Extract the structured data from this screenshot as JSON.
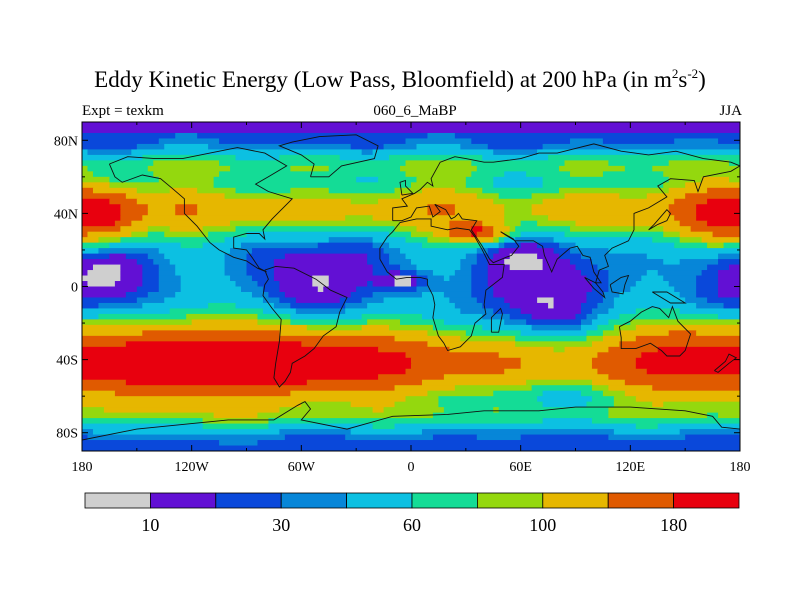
{
  "title": {
    "main": "Eddy Kinetic Energy (Low Pass, Bloomfield) at 200 hPa (in m",
    "exp1": "2",
    "mid": "s",
    "exp2": "-2",
    "close": ")"
  },
  "subtitle": {
    "left": "Expt = texkm",
    "center": "060_6_MaBP",
    "right": "JJA"
  },
  "chart_data": {
    "type": "heatmap",
    "variable": "Eddy Kinetic Energy (Low Pass, Bloomfield) at 200 hPa",
    "units": "m2s-2",
    "experiment": "texkm",
    "run": "060_6_MaBP",
    "season": "JJA",
    "projection": "cylindrical equidistant",
    "xlim": [
      -180,
      180
    ],
    "ylim": [
      -90,
      90
    ],
    "x_ticks": [
      {
        "value": -180,
        "label": "180"
      },
      {
        "value": -120,
        "label": "120W"
      },
      {
        "value": -60,
        "label": "60W"
      },
      {
        "value": 0,
        "label": "0"
      },
      {
        "value": 60,
        "label": "60E"
      },
      {
        "value": 120,
        "label": "120E"
      },
      {
        "value": 180,
        "label": "180"
      }
    ],
    "y_ticks": [
      {
        "value": 80,
        "label": "80N"
      },
      {
        "value": 40,
        "label": "40N"
      },
      {
        "value": 0,
        "label": "0"
      },
      {
        "value": -40,
        "label": "40S"
      },
      {
        "value": -80,
        "label": "80S"
      }
    ],
    "levels": [
      10,
      20,
      30,
      40,
      60,
      80,
      100,
      140,
      180
    ],
    "colorbar": {
      "colors": [
        "#cfcfcf",
        "#6210d4",
        "#0a48da",
        "#0786d8",
        "#0cc0e2",
        "#14dc96",
        "#94d80e",
        "#e6b700",
        "#e05a00",
        "#e8000e"
      ],
      "labels": [
        {
          "value": 10,
          "label": "10"
        },
        {
          "value": 30,
          "label": "30"
        },
        {
          "value": 60,
          "label": "60"
        },
        {
          "value": 100,
          "label": "100"
        },
        {
          "value": 180,
          "label": "180"
        }
      ]
    },
    "features": [
      {
        "lon": -150,
        "lat": -42,
        "value": 200,
        "sx": 50,
        "sy": 14,
        "desc": "southern hemisphere jet maximum"
      },
      {
        "lon": -60,
        "lat": -42,
        "value": 210,
        "sx": 55,
        "sy": 14
      },
      {
        "lon": 150,
        "lat": -40,
        "value": 190,
        "sx": 25,
        "sy": 12
      },
      {
        "lon": -168,
        "lat": 40,
        "value": 200,
        "sx": 15,
        "sy": 10
      },
      {
        "lon": 168,
        "lat": 40,
        "value": 200,
        "sx": 15,
        "sy": 10
      },
      {
        "lon": 35,
        "lat": 30,
        "value": 190,
        "sx": 12,
        "sy": 4
      },
      {
        "lon": -5,
        "lat": 3,
        "value": 5,
        "sx": 10,
        "sy": 4,
        "desc": "equatorial minimum"
      },
      {
        "lon": 75,
        "lat": 2,
        "value": 15,
        "sx": 20,
        "sy": 5
      }
    ]
  },
  "coast_outlines": [
    [
      [
        -165,
        67
      ],
      [
        -155,
        71
      ],
      [
        -140,
        70
      ],
      [
        -125,
        70
      ],
      [
        -110,
        73
      ],
      [
        -95,
        76
      ],
      [
        -80,
        73
      ],
      [
        -68,
        66
      ],
      [
        -78,
        60
      ],
      [
        -85,
        56
      ],
      [
        -78,
        52
      ],
      [
        -65,
        48
      ],
      [
        -70,
        43
      ],
      [
        -76,
        37
      ],
      [
        -81,
        31
      ],
      [
        -80,
        26
      ],
      [
        -83,
        29
      ],
      [
        -90,
        29
      ],
      [
        -97,
        27
      ],
      [
        -97,
        21
      ],
      [
        -90,
        20
      ],
      [
        -87,
        16
      ],
      [
        -83,
        10
      ],
      [
        -79,
        8
      ],
      [
        -84,
        10
      ],
      [
        -90,
        14
      ],
      [
        -97,
        16
      ],
      [
        -105,
        20
      ],
      [
        -110,
        24
      ],
      [
        -117,
        33
      ],
      [
        -124,
        40
      ],
      [
        -124,
        48
      ],
      [
        -131,
        54
      ],
      [
        -137,
        59
      ],
      [
        -147,
        61
      ],
      [
        -158,
        57
      ],
      [
        -162,
        60
      ],
      [
        -165,
        67
      ]
    ],
    [
      [
        -80,
        9
      ],
      [
        -74,
        11
      ],
      [
        -64,
        10
      ],
      [
        -52,
        4
      ],
      [
        -44,
        -2
      ],
      [
        -35,
        -6
      ],
      [
        -39,
        -14
      ],
      [
        -41,
        -22
      ],
      [
        -48,
        -27
      ],
      [
        -53,
        -34
      ],
      [
        -58,
        -38
      ],
      [
        -65,
        -42
      ],
      [
        -66,
        -47
      ],
      [
        -69,
        -52
      ],
      [
        -72,
        -55
      ],
      [
        -75,
        -50
      ],
      [
        -74,
        -42
      ],
      [
        -72,
        -30
      ],
      [
        -71,
        -18
      ],
      [
        -76,
        -12
      ],
      [
        -81,
        -5
      ],
      [
        -80,
        1
      ],
      [
        -78,
        4
      ],
      [
        -80,
        9
      ]
    ],
    [
      [
        -10,
        36
      ],
      [
        -10,
        43
      ],
      [
        -2,
        44
      ],
      [
        -5,
        48
      ],
      [
        2,
        51
      ],
      [
        5,
        53
      ],
      [
        9,
        57
      ],
      [
        12,
        55
      ],
      [
        11,
        59
      ],
      [
        16,
        68
      ],
      [
        24,
        71
      ],
      [
        30,
        70
      ],
      [
        40,
        68
      ],
      [
        45,
        68
      ],
      [
        60,
        70
      ],
      [
        70,
        73
      ],
      [
        80,
        73
      ],
      [
        100,
        78
      ],
      [
        115,
        74
      ],
      [
        130,
        72
      ],
      [
        145,
        74
      ],
      [
        160,
        70
      ],
      [
        175,
        68
      ],
      [
        180,
        66
      ],
      [
        175,
        63
      ],
      [
        160,
        60
      ],
      [
        157,
        52
      ],
      [
        155,
        58
      ],
      [
        142,
        59
      ],
      [
        135,
        55
      ],
      [
        140,
        49
      ],
      [
        130,
        43
      ],
      [
        122,
        40
      ],
      [
        122,
        31
      ],
      [
        119,
        25
      ],
      [
        110,
        21
      ],
      [
        106,
        17
      ],
      [
        108,
        11
      ],
      [
        103,
        9
      ],
      [
        101,
        2
      ],
      [
        104,
        2
      ],
      [
        100,
        8
      ],
      [
        98,
        16
      ],
      [
        94,
        17
      ],
      [
        91,
        22
      ],
      [
        87,
        21
      ],
      [
        80,
        15
      ],
      [
        77,
        8
      ],
      [
        73,
        17
      ],
      [
        72,
        22
      ],
      [
        67,
        25
      ],
      [
        57,
        25
      ],
      [
        52,
        28
      ],
      [
        49,
        30
      ],
      [
        56,
        26
      ],
      [
        59,
        22
      ],
      [
        55,
        17
      ],
      [
        52,
        16
      ],
      [
        45,
        13
      ],
      [
        43,
        15
      ],
      [
        39,
        22
      ],
      [
        35,
        28
      ],
      [
        33,
        31
      ],
      [
        36,
        36
      ],
      [
        28,
        37
      ],
      [
        26,
        40
      ],
      [
        24,
        38
      ],
      [
        22,
        37
      ],
      [
        19,
        42
      ],
      [
        13,
        45
      ],
      [
        16,
        41
      ],
      [
        12,
        38
      ],
      [
        10,
        44
      ],
      [
        3,
        43
      ],
      [
        0,
        38
      ],
      [
        -5,
        36
      ],
      [
        -10,
        36
      ]
    ],
    [
      [
        -17,
        15
      ],
      [
        -17,
        21
      ],
      [
        -13,
        27
      ],
      [
        -10,
        30
      ],
      [
        -6,
        35
      ],
      [
        3,
        37
      ],
      [
        11,
        37
      ],
      [
        11,
        33
      ],
      [
        20,
        31
      ],
      [
        25,
        32
      ],
      [
        32,
        31
      ],
      [
        35,
        27
      ],
      [
        39,
        20
      ],
      [
        43,
        12
      ],
      [
        51,
        12
      ],
      [
        50,
        5
      ],
      [
        41,
        -2
      ],
      [
        40,
        -10
      ],
      [
        41,
        -15
      ],
      [
        35,
        -20
      ],
      [
        33,
        -27
      ],
      [
        27,
        -33
      ],
      [
        20,
        -35
      ],
      [
        18,
        -31
      ],
      [
        15,
        -27
      ],
      [
        12,
        -17
      ],
      [
        13,
        -10
      ],
      [
        12,
        -5
      ],
      [
        9,
        1
      ],
      [
        9,
        4
      ],
      [
        5,
        5
      ],
      [
        -2,
        5
      ],
      [
        -8,
        4
      ],
      [
        -13,
        8
      ],
      [
        -17,
        15
      ]
    ],
    [
      [
        114,
        -22
      ],
      [
        120,
        -19
      ],
      [
        126,
        -14
      ],
      [
        132,
        -11
      ],
      [
        136,
        -12
      ],
      [
        141,
        -17
      ],
      [
        143,
        -11
      ],
      [
        146,
        -19
      ],
      [
        153,
        -26
      ],
      [
        150,
        -35
      ],
      [
        147,
        -38
      ],
      [
        140,
        -38
      ],
      [
        137,
        -35
      ],
      [
        131,
        -31
      ],
      [
        123,
        -34
      ],
      [
        115,
        -34
      ],
      [
        115,
        -28
      ],
      [
        114,
        -22
      ]
    ],
    [
      [
        -55,
        60
      ],
      [
        -45,
        60
      ],
      [
        -38,
        66
      ],
      [
        -20,
        70
      ],
      [
        -18,
        77
      ],
      [
        -30,
        83
      ],
      [
        -50,
        82
      ],
      [
        -65,
        79
      ],
      [
        -72,
        77
      ],
      [
        -60,
        72
      ],
      [
        -53,
        67
      ],
      [
        -55,
        60
      ]
    ],
    [
      [
        44,
        -25
      ],
      [
        48,
        -25
      ],
      [
        50,
        -15
      ],
      [
        49,
        -12
      ],
      [
        44,
        -17
      ],
      [
        44,
        -25
      ]
    ],
    [
      [
        -5,
        50
      ],
      [
        1,
        51
      ],
      [
        -3,
        55
      ],
      [
        -3,
        58
      ],
      [
        -6,
        57
      ],
      [
        -5,
        50
      ]
    ],
    [
      [
        130,
        31
      ],
      [
        135,
        34
      ],
      [
        140,
        36
      ],
      [
        142,
        40
      ],
      [
        140,
        42
      ],
      [
        133,
        34
      ],
      [
        130,
        31
      ]
    ],
    [
      [
        95,
        5
      ],
      [
        101,
        2
      ],
      [
        105,
        -3
      ],
      [
        106,
        -6
      ],
      [
        100,
        -1
      ],
      [
        95,
        5
      ]
    ],
    [
      [
        109,
        1
      ],
      [
        115,
        5
      ],
      [
        119,
        6
      ],
      [
        117,
        1
      ],
      [
        116,
        -4
      ],
      [
        110,
        -3
      ],
      [
        109,
        1
      ]
    ],
    [
      [
        132,
        -3
      ],
      [
        140,
        -3
      ],
      [
        150,
        -9
      ],
      [
        142,
        -9
      ],
      [
        132,
        -3
      ]
    ],
    [
      [
        166,
        -46
      ],
      [
        172,
        -41
      ],
      [
        174,
        -37
      ],
      [
        178,
        -39
      ],
      [
        174,
        -42
      ],
      [
        168,
        -47
      ],
      [
        166,
        -46
      ]
    ],
    [
      [
        -180,
        -84
      ],
      [
        -150,
        -78
      ],
      [
        -120,
        -75
      ],
      [
        -100,
        -73
      ],
      [
        -75,
        -73
      ],
      [
        -62,
        -65
      ],
      [
        -58,
        -63
      ],
      [
        -55,
        -67
      ],
      [
        -60,
        -73
      ],
      [
        -35,
        -78
      ],
      [
        -10,
        -71
      ],
      [
        20,
        -70
      ],
      [
        40,
        -68
      ],
      [
        70,
        -68
      ],
      [
        90,
        -66
      ],
      [
        120,
        -66
      ],
      [
        150,
        -68
      ],
      [
        165,
        -71
      ],
      [
        170,
        -77
      ],
      [
        180,
        -78
      ]
    ]
  ]
}
